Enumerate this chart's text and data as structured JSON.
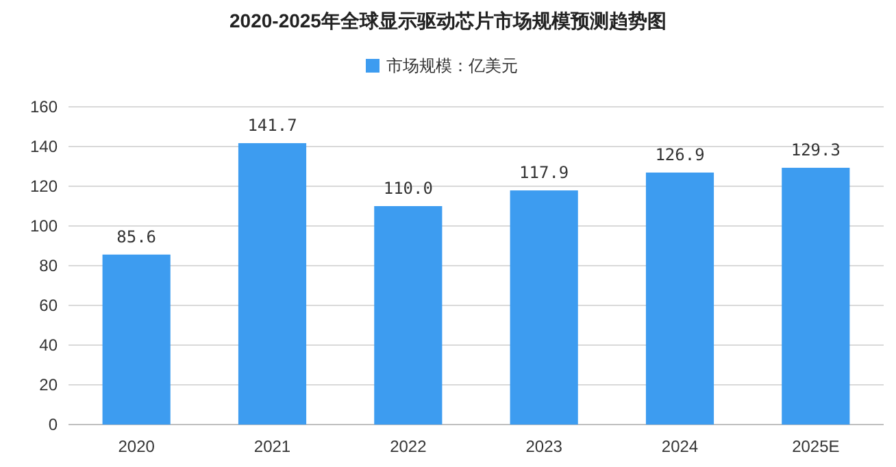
{
  "chart_data": {
    "type": "bar",
    "title": "2020-2025年全球显示驱动芯片市场规模预测趋势图",
    "categories": [
      "2020",
      "2021",
      "2022",
      "2023",
      "2024",
      "2025E"
    ],
    "series": [
      {
        "name": "市场规模：亿美元",
        "color": "#3d9cf0",
        "values": [
          85.6,
          141.7,
          110.0,
          117.9,
          126.9,
          129.3
        ]
      }
    ],
    "value_labels": [
      "85.6",
      "141.7",
      "110.0",
      "117.9",
      "126.9",
      "129.3"
    ],
    "ylim": [
      0,
      160
    ],
    "yticks": [
      0,
      20,
      40,
      60,
      80,
      100,
      120,
      140,
      160
    ],
    "grid": "y",
    "legend": "top"
  }
}
